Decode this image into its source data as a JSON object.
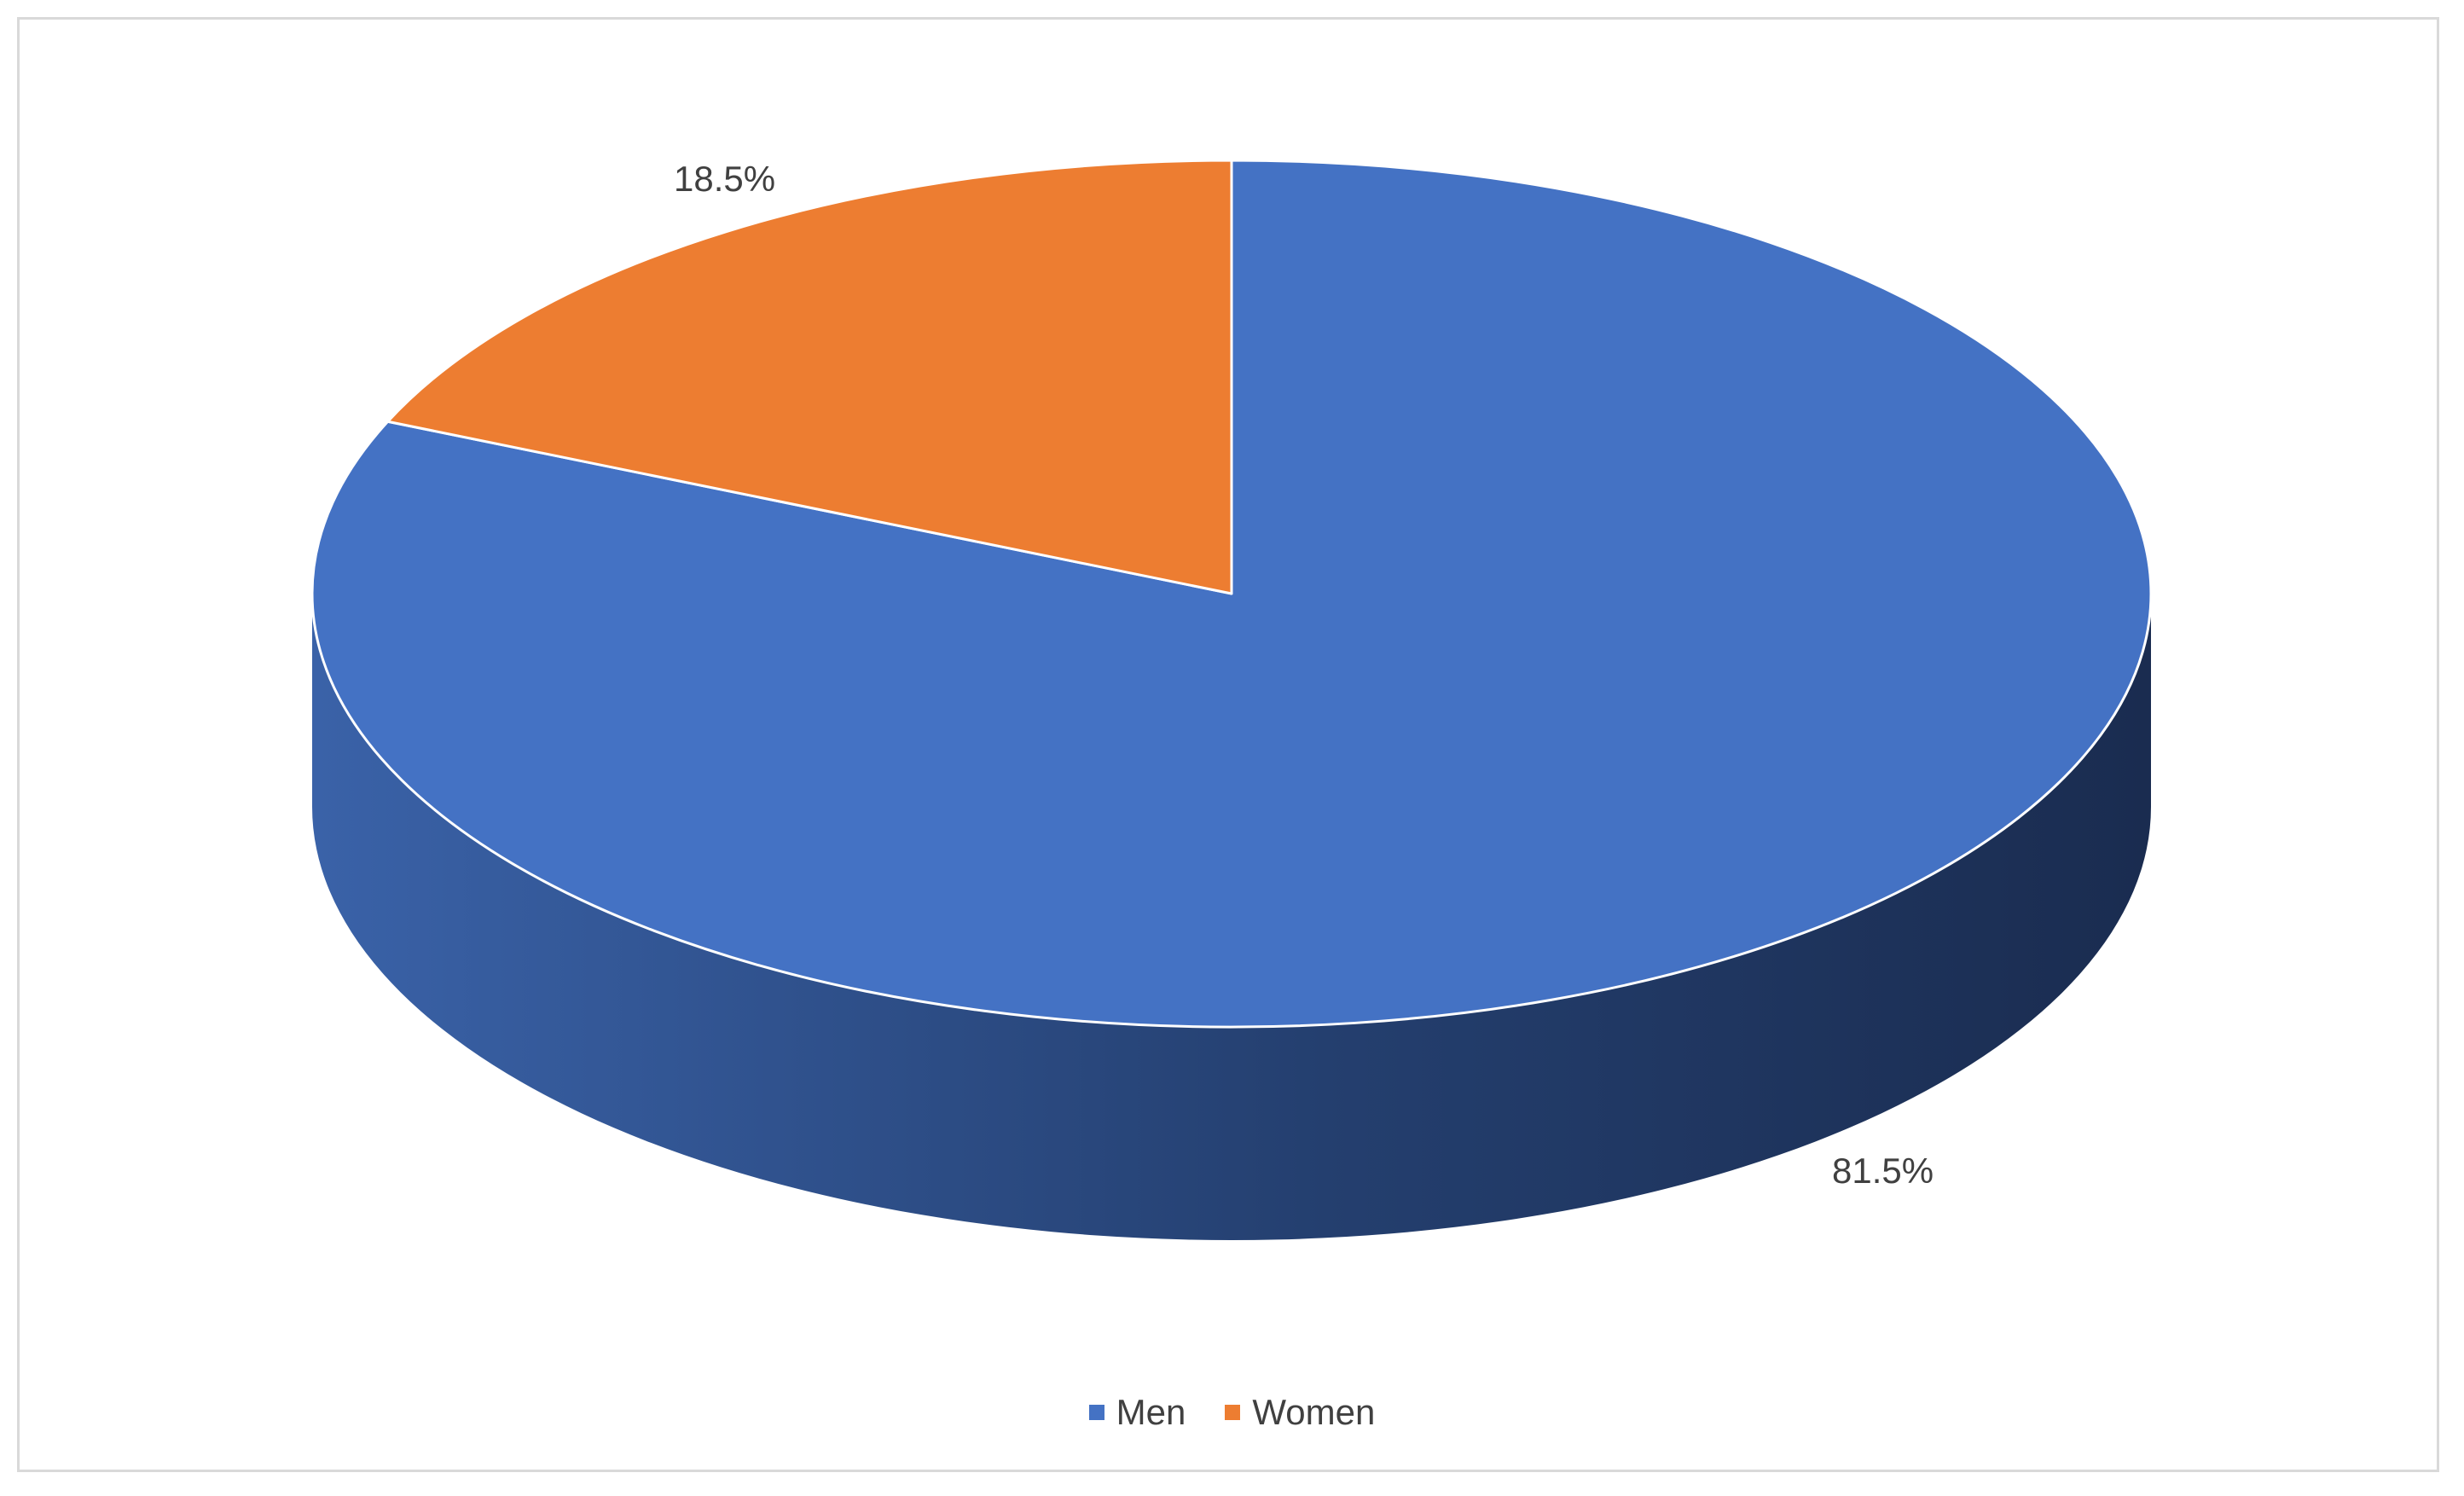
{
  "chart_data": {
    "type": "pie",
    "style": "3d",
    "start_angle_deg": 0,
    "direction": "clockwise",
    "slices": [
      {
        "name": "Men",
        "value": 81.5,
        "label": "81.5%",
        "color": "#4472C4"
      },
      {
        "name": "Women",
        "value": 18.5,
        "label": "18.5%",
        "color": "#ED7D31"
      }
    ],
    "legend_position": "bottom",
    "title": ""
  }
}
